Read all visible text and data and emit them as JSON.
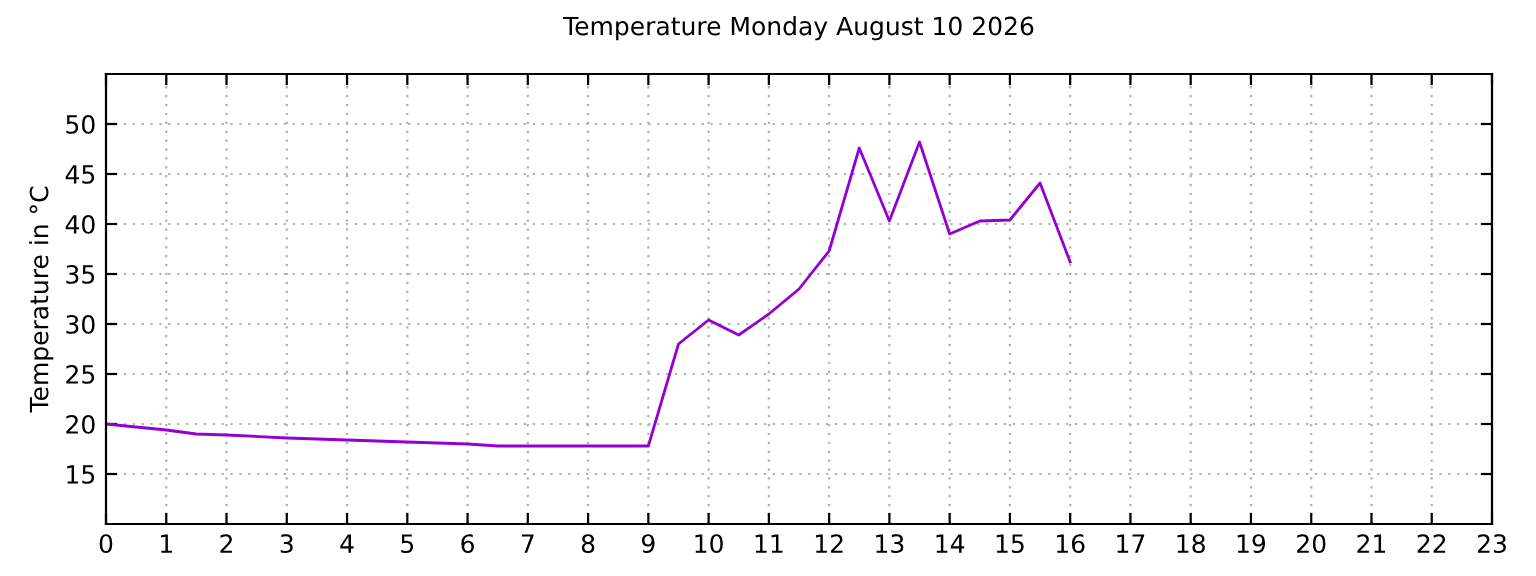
{
  "chart_data": {
    "type": "line",
    "title": "Temperature Monday August 10 2026",
    "ylabel": "Temperature in °C",
    "series": [
      {
        "color": "#9400d3",
        "x": [
          0,
          1,
          1.5,
          2,
          3,
          4,
          5,
          6,
          6.5,
          9,
          9.5,
          10,
          10.5,
          11,
          11.5,
          12,
          12.5,
          13,
          13.5,
          14,
          14.5,
          15,
          15.5,
          16
        ],
        "values": [
          20,
          19.4,
          19.0,
          18.9,
          18.6,
          18.4,
          18.2,
          18.0,
          17.8,
          17.8,
          28,
          30.4,
          28.9,
          31,
          33.5,
          37.3,
          47.6,
          40.3,
          48.2,
          39,
          40.3,
          40.4,
          44.1,
          36.2
        ]
      }
    ],
    "xlim": [
      0,
      23
    ],
    "xticks": [
      0,
      1,
      2,
      3,
      4,
      5,
      6,
      7,
      8,
      9,
      10,
      11,
      12,
      13,
      14,
      15,
      16,
      17,
      18,
      19,
      20,
      21,
      22,
      23
    ],
    "ylim": [
      10,
      55
    ],
    "yticks": [
      15,
      20,
      25,
      30,
      35,
      40,
      45,
      50
    ],
    "grid": true,
    "legend": false,
    "marker": "none",
    "line_style": "solid"
  }
}
